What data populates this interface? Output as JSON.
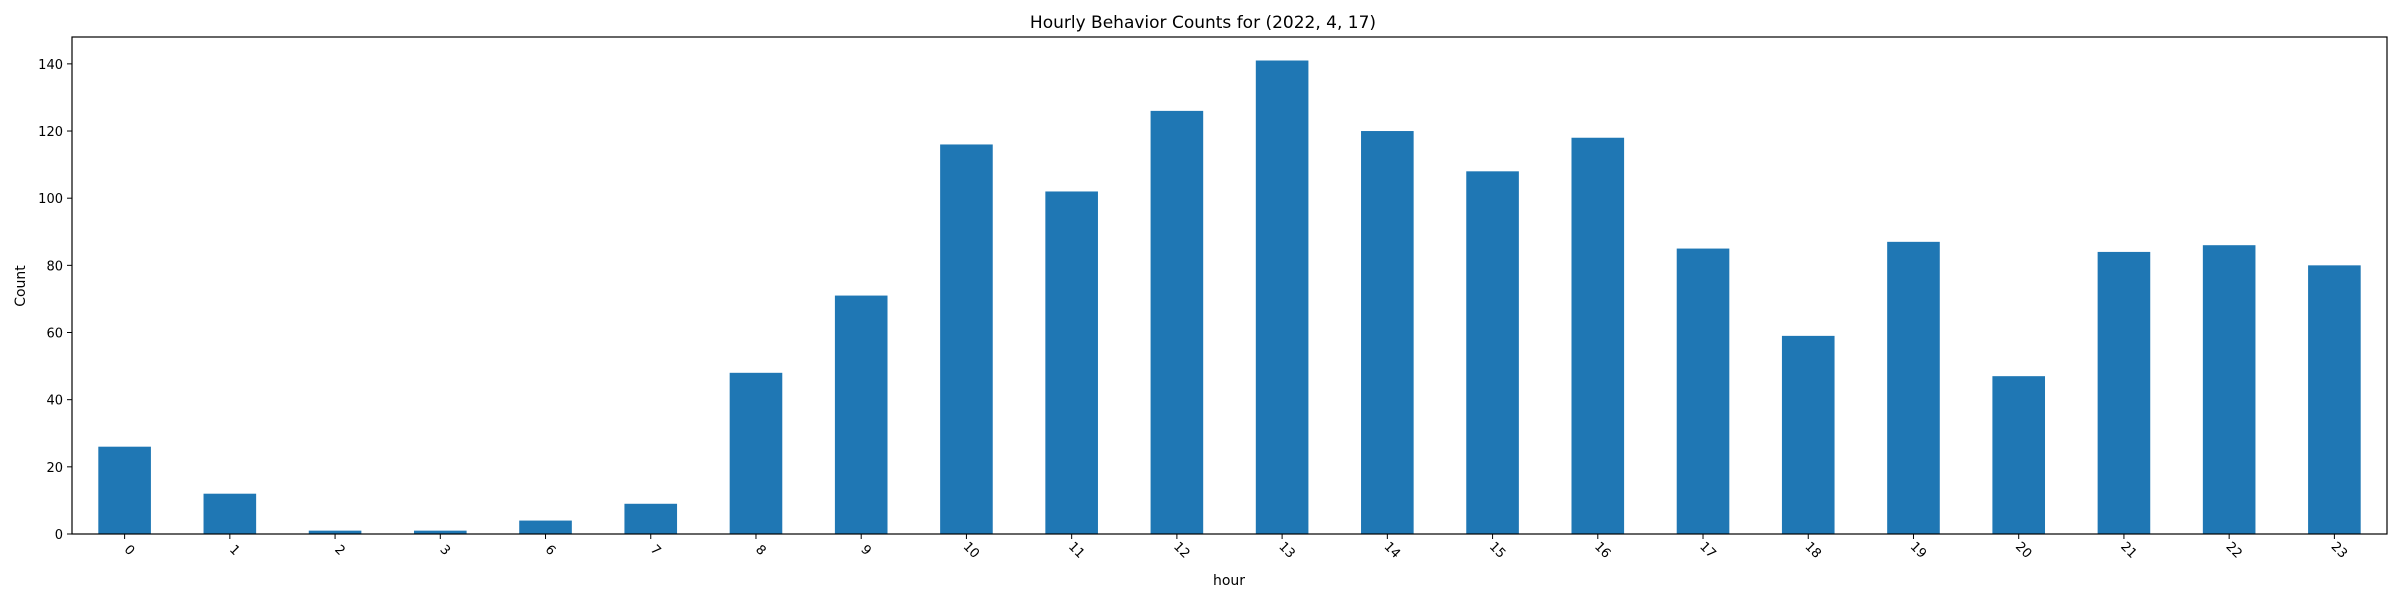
{
  "chart_data": {
    "type": "bar",
    "title": "Hourly Behavior Counts for (2022, 4, 17)",
    "xlabel": "hour",
    "ylabel": "Count",
    "categories": [
      "0",
      "1",
      "2",
      "3",
      "6",
      "7",
      "8",
      "9",
      "10",
      "11",
      "12",
      "13",
      "14",
      "15",
      "16",
      "17",
      "18",
      "19",
      "20",
      "21",
      "22",
      "23"
    ],
    "values": [
      26,
      12,
      1,
      1,
      4,
      9,
      48,
      71,
      116,
      102,
      126,
      141,
      120,
      108,
      118,
      85,
      59,
      87,
      47,
      84,
      86,
      80
    ],
    "yticks": [
      0,
      20,
      40,
      60,
      80,
      100,
      120,
      140
    ],
    "ylim": [
      0,
      148
    ],
    "grid": false,
    "bar_color": "#1f77b4"
  }
}
